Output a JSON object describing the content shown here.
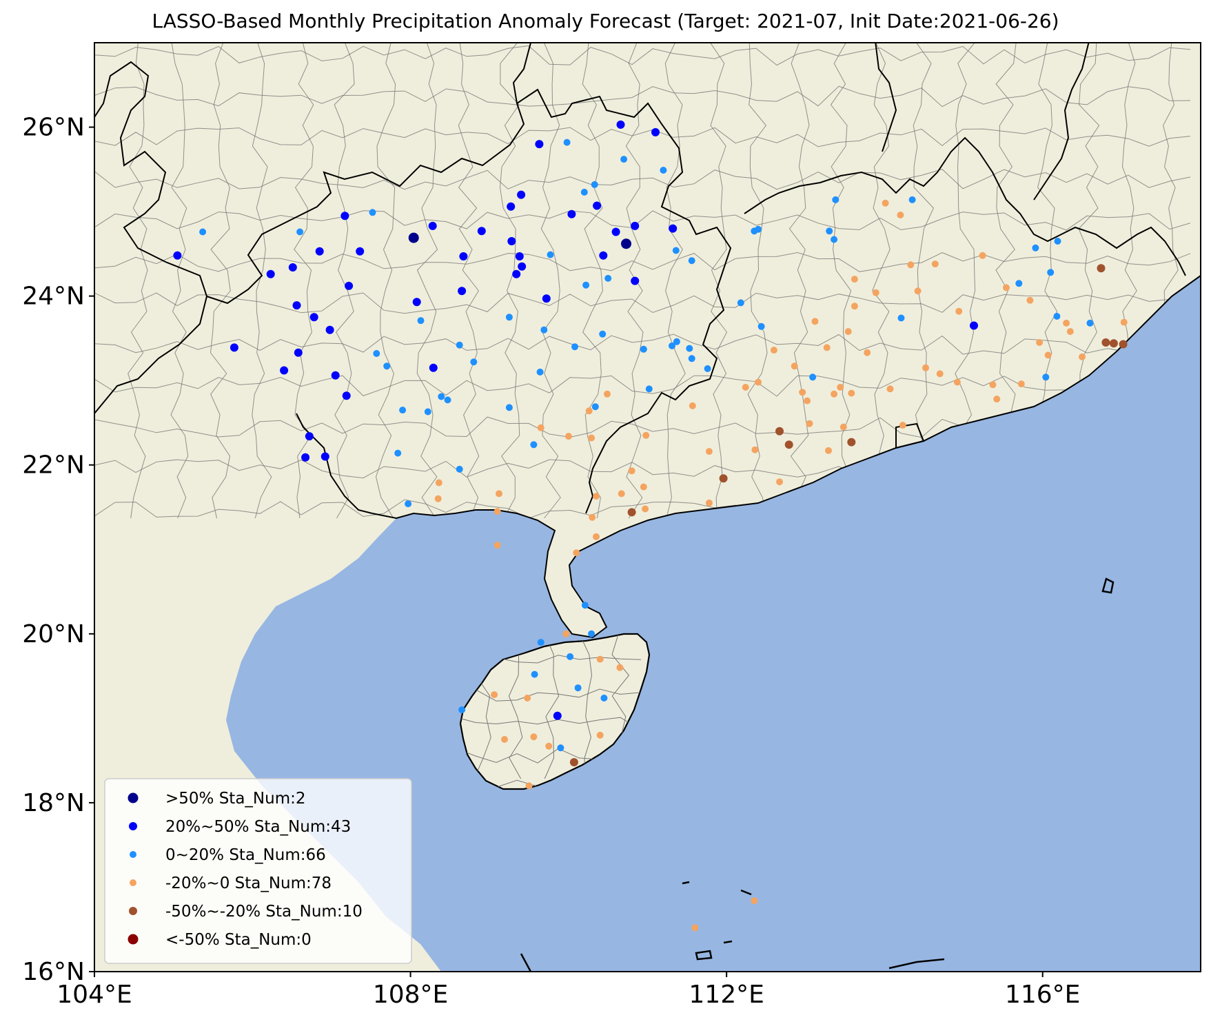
{
  "title": "LASSO-Based Monthly Precipitation Anomaly Forecast (Target: 2021-07, Init Date:2021-06-26)",
  "colors": {
    "ocean": "#97b6e2",
    "land": "#efeedc",
    "border": "#000000",
    "county": "#777777"
  },
  "map": {
    "lon_range": [
      104,
      118
    ],
    "lat_range": [
      16,
      27
    ],
    "x_ticks": [
      {
        "value": 104,
        "label": "104°E"
      },
      {
        "value": 108,
        "label": "108°E"
      },
      {
        "value": 112,
        "label": "112°E"
      },
      {
        "value": 116,
        "label": "116°E"
      }
    ],
    "y_ticks": [
      {
        "value": 16,
        "label": "16°N"
      },
      {
        "value": 18,
        "label": "18°N"
      },
      {
        "value": 20,
        "label": "20°N"
      },
      {
        "value": 22,
        "label": "22°N"
      },
      {
        "value": 24,
        "label": "24°N"
      },
      {
        "value": 26,
        "label": "26°N"
      }
    ]
  },
  "legend": {
    "position": "lower-left",
    "items": [
      {
        "label": ">50% Sta_Num:2",
        "color": "#00008b",
        "size": 7.5
      },
      {
        "label": "20%~50% Sta_Num:43",
        "color": "#0000ff",
        "size": 6
      },
      {
        "label": "0~20% Sta_Num:66",
        "color": "#1e90ff",
        "size": 5
      },
      {
        "label": "-20%~0 Sta_Num:78",
        "color": "#f4a460",
        "size": 5
      },
      {
        "label": "-50%~-20% Sta_Num:10",
        "color": "#a0522d",
        "size": 6
      },
      {
        "label": "<-50% Sta_Num:0",
        "color": "#8b0000",
        "size": 7.5
      }
    ]
  },
  "stations": {
    "gt50": [
      [
        108.04,
        24.69
      ],
      [
        110.73,
        24.62
      ]
    ],
    "p20_50": [
      [
        105.05,
        24.48
      ],
      [
        105.77,
        23.39
      ],
      [
        106.23,
        24.26
      ],
      [
        106.51,
        24.34
      ],
      [
        106.4,
        23.12
      ],
      [
        106.58,
        23.33
      ],
      [
        106.56,
        23.89
      ],
      [
        106.78,
        23.75
      ],
      [
        106.85,
        24.53
      ],
      [
        106.98,
        23.6
      ],
      [
        107.17,
        24.95
      ],
      [
        107.36,
        24.53
      ],
      [
        107.22,
        24.12
      ],
      [
        107.05,
        23.06
      ],
      [
        107.19,
        22.82
      ],
      [
        106.72,
        22.34
      ],
      [
        106.92,
        22.1
      ],
      [
        106.67,
        22.09
      ],
      [
        108.28,
        24.83
      ],
      [
        108.08,
        23.93
      ],
      [
        108.29,
        23.15
      ],
      [
        108.67,
        24.47
      ],
      [
        108.65,
        24.06
      ],
      [
        108.9,
        24.77
      ],
      [
        109.27,
        25.06
      ],
      [
        109.4,
        25.2
      ],
      [
        109.28,
        24.65
      ],
      [
        109.38,
        24.47
      ],
      [
        109.41,
        24.35
      ],
      [
        109.34,
        24.26
      ],
      [
        109.63,
        25.8
      ],
      [
        109.72,
        23.97
      ],
      [
        110.04,
        24.97
      ],
      [
        110.36,
        25.07
      ],
      [
        110.6,
        24.76
      ],
      [
        110.44,
        24.48
      ],
      [
        110.84,
        24.83
      ],
      [
        110.66,
        26.03
      ],
      [
        111.1,
        25.94
      ],
      [
        111.32,
        24.8
      ],
      [
        110.84,
        24.18
      ],
      [
        115.13,
        23.65
      ],
      [
        109.86,
        19.03
      ]
    ],
    "p0_20": [
      [
        105.37,
        24.76
      ],
      [
        106.6,
        24.76
      ],
      [
        107.52,
        24.99
      ],
      [
        107.57,
        23.32
      ],
      [
        107.7,
        23.17
      ],
      [
        107.9,
        22.65
      ],
      [
        108.13,
        23.71
      ],
      [
        108.22,
        22.63
      ],
      [
        108.39,
        22.81
      ],
      [
        108.47,
        22.77
      ],
      [
        108.62,
        23.42
      ],
      [
        108.8,
        23.22
      ],
      [
        109.25,
        23.75
      ],
      [
        109.25,
        22.68
      ],
      [
        109.56,
        22.24
      ],
      [
        109.64,
        23.1
      ],
      [
        109.69,
        23.6
      ],
      [
        109.77,
        24.49
      ],
      [
        109.98,
        25.82
      ],
      [
        110.22,
        24.13
      ],
      [
        110.2,
        25.23
      ],
      [
        110.33,
        25.32
      ],
      [
        110.5,
        24.21
      ],
      [
        110.7,
        25.62
      ],
      [
        110.43,
        23.55
      ],
      [
        110.08,
        23.4
      ],
      [
        110.34,
        22.69
      ],
      [
        110.95,
        23.37
      ],
      [
        111.02,
        22.9
      ],
      [
        111.31,
        23.41
      ],
      [
        111.37,
        23.46
      ],
      [
        111.36,
        24.54
      ],
      [
        111.56,
        24.42
      ],
      [
        111.2,
        25.49
      ],
      [
        111.53,
        23.38
      ],
      [
        111.56,
        23.26
      ],
      [
        111.76,
        23.14
      ],
      [
        112.18,
        23.92
      ],
      [
        112.35,
        24.77
      ],
      [
        112.4,
        24.79
      ],
      [
        112.44,
        23.64
      ],
      [
        113.09,
        23.04
      ],
      [
        113.3,
        24.77
      ],
      [
        113.38,
        25.14
      ],
      [
        113.36,
        24.67
      ],
      [
        114.35,
        25.14
      ],
      [
        114.21,
        23.74
      ],
      [
        115.7,
        24.15
      ],
      [
        115.91,
        24.57
      ],
      [
        116.1,
        24.28
      ],
      [
        116.18,
        23.76
      ],
      [
        116.19,
        24.65
      ],
      [
        116.6,
        23.68
      ],
      [
        116.04,
        23.04
      ],
      [
        108.62,
        21.95
      ],
      [
        107.97,
        21.54
      ],
      [
        110.21,
        20.34
      ],
      [
        110.02,
        19.73
      ],
      [
        109.65,
        19.9
      ],
      [
        110.29,
        20.0
      ],
      [
        110.12,
        19.36
      ],
      [
        110.45,
        19.24
      ],
      [
        109.57,
        19.52
      ],
      [
        108.65,
        19.1
      ],
      [
        109.9,
        18.65
      ],
      [
        107.84,
        22.14
      ]
    ],
    "m20_0": [
      [
        108.36,
        21.79
      ],
      [
        108.35,
        21.6
      ],
      [
        109.12,
        21.66
      ],
      [
        109.1,
        21.45
      ],
      [
        109.1,
        21.05
      ],
      [
        109.65,
        22.44
      ],
      [
        110.0,
        22.34
      ],
      [
        110.29,
        22.32
      ],
      [
        110.26,
        22.64
      ],
      [
        110.49,
        22.84
      ],
      [
        110.35,
        21.63
      ],
      [
        110.3,
        21.38
      ],
      [
        110.35,
        21.15
      ],
      [
        110.1,
        20.96
      ],
      [
        110.8,
        21.93
      ],
      [
        110.95,
        21.74
      ],
      [
        110.67,
        21.66
      ],
      [
        110.97,
        21.48
      ],
      [
        110.98,
        22.35
      ],
      [
        111.57,
        22.7
      ],
      [
        111.78,
        22.16
      ],
      [
        111.78,
        21.55
      ],
      [
        112.24,
        22.92
      ],
      [
        112.36,
        22.18
      ],
      [
        112.4,
        22.98
      ],
      [
        112.6,
        23.36
      ],
      [
        112.67,
        21.8
      ],
      [
        112.86,
        23.17
      ],
      [
        112.96,
        22.86
      ],
      [
        113.02,
        22.76
      ],
      [
        113.05,
        22.49
      ],
      [
        113.27,
        23.39
      ],
      [
        113.36,
        22.84
      ],
      [
        113.29,
        22.17
      ],
      [
        113.44,
        22.92
      ],
      [
        113.48,
        22.45
      ],
      [
        113.58,
        22.85
      ],
      [
        113.54,
        23.58
      ],
      [
        113.62,
        23.88
      ],
      [
        114.07,
        22.9
      ],
      [
        113.78,
        23.33
      ],
      [
        113.89,
        24.04
      ],
      [
        114.01,
        25.1
      ],
      [
        114.23,
        22.47
      ],
      [
        113.62,
        24.2
      ],
      [
        113.12,
        23.7
      ],
      [
        114.2,
        24.96
      ],
      [
        114.33,
        24.37
      ],
      [
        114.42,
        24.06
      ],
      [
        114.52,
        23.15
      ],
      [
        114.64,
        24.38
      ],
      [
        114.7,
        23.08
      ],
      [
        114.92,
        22.98
      ],
      [
        114.94,
        23.82
      ],
      [
        115.24,
        24.48
      ],
      [
        115.42,
        22.78
      ],
      [
        115.37,
        22.95
      ],
      [
        115.54,
        24.1
      ],
      [
        115.73,
        22.96
      ],
      [
        115.84,
        23.95
      ],
      [
        115.96,
        23.45
      ],
      [
        116.07,
        23.3
      ],
      [
        116.35,
        23.58
      ],
      [
        116.5,
        23.28
      ],
      [
        117.03,
        23.69
      ],
      [
        116.3,
        23.68
      ],
      [
        109.97,
        20.0
      ],
      [
        110.4,
        19.7
      ],
      [
        110.65,
        19.6
      ],
      [
        109.06,
        19.28
      ],
      [
        109.48,
        19.24
      ],
      [
        109.19,
        18.75
      ],
      [
        109.56,
        18.78
      ],
      [
        109.75,
        18.67
      ],
      [
        110.4,
        18.8
      ],
      [
        109.5,
        18.2
      ],
      [
        112.35,
        16.84
      ],
      [
        111.6,
        16.52
      ]
    ],
    "m50_20": [
      [
        112.67,
        22.4
      ],
      [
        112.79,
        22.24
      ],
      [
        113.58,
        22.27
      ],
      [
        111.96,
        21.84
      ],
      [
        110.8,
        21.44
      ],
      [
        110.07,
        18.48
      ],
      [
        116.74,
        24.33
      ],
      [
        116.9,
        23.44
      ],
      [
        117.02,
        23.43
      ],
      [
        116.8,
        23.45
      ]
    ]
  }
}
